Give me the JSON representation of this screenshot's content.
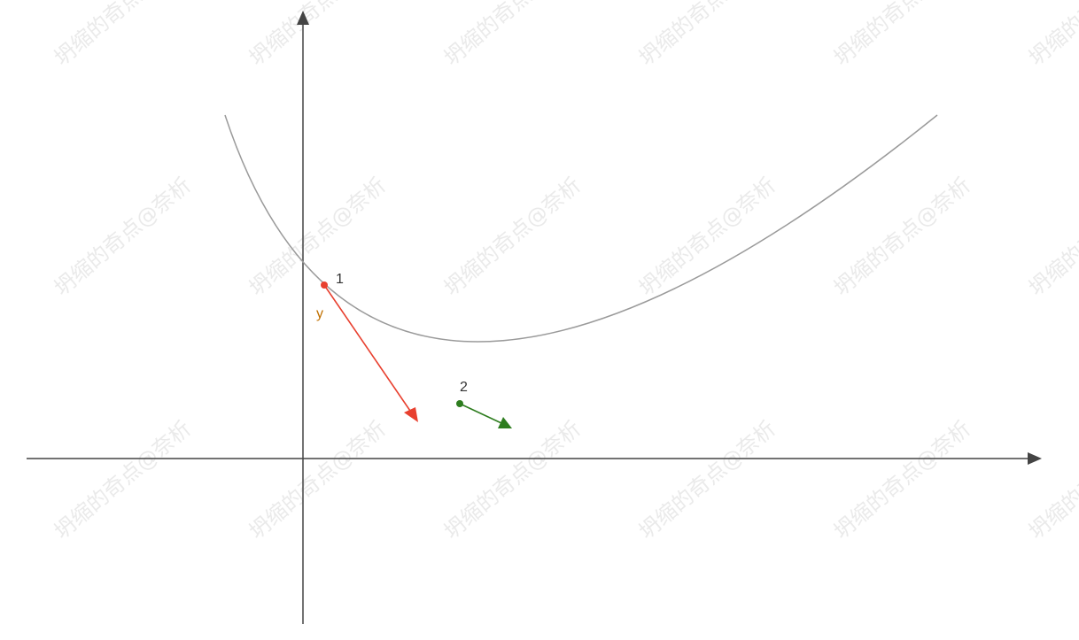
{
  "watermark": "坍缩的奇点@奈析",
  "points": [
    {
      "label": "1",
      "color": "#e8402f"
    },
    {
      "label": "2",
      "color": "#2e7d1f"
    }
  ],
  "y_label": "y",
  "colors": {
    "curve": "#9a9a9a",
    "axes": "#444444",
    "y_label": "#c07000",
    "watermark": "#d9d9d9"
  }
}
